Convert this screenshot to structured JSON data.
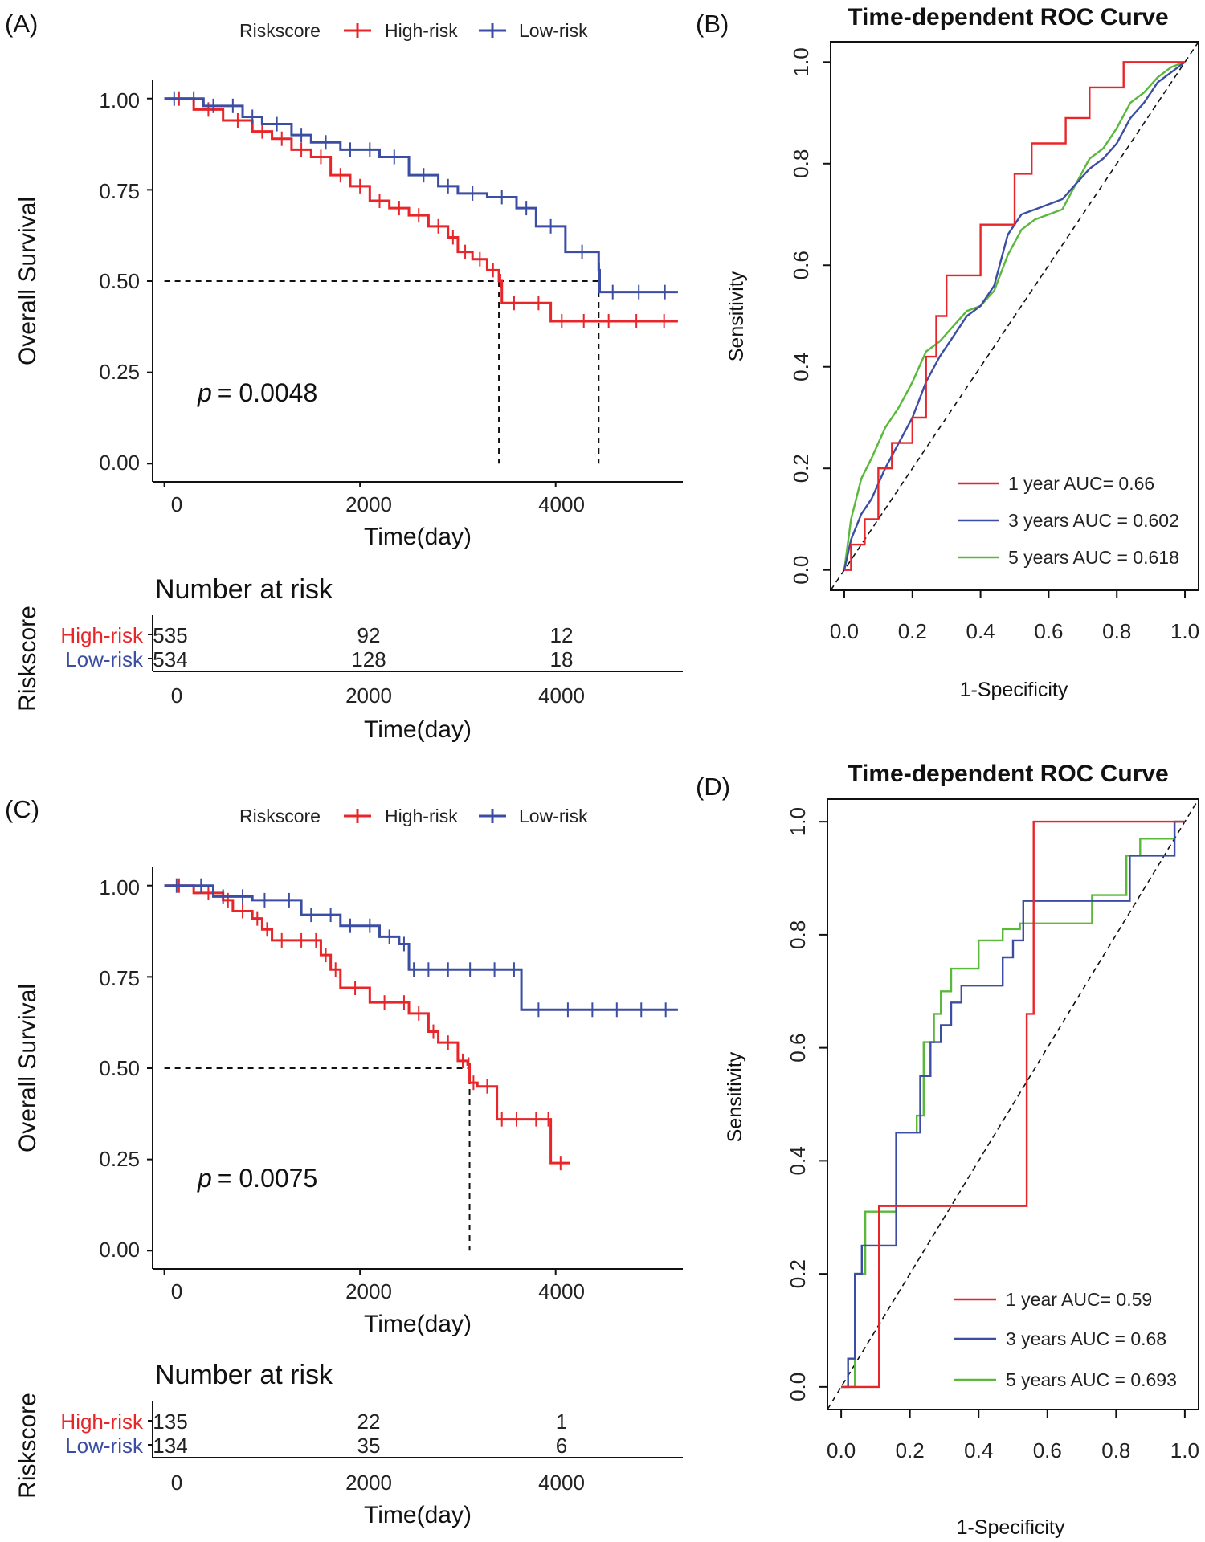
{
  "colors": {
    "high": "#e8262a",
    "low": "#3b4ea3",
    "green": "#5ab83a",
    "black": "#111111"
  },
  "chart_data": [
    {
      "panel": "(A)",
      "type": "line",
      "subtype": "kaplan-meier",
      "legend": {
        "title": "Riskscore",
        "entries": [
          "High-risk",
          "Low-risk"
        ]
      },
      "xlabel": "Time(day)",
      "ylabel": "Overall Survival",
      "xlim": [
        -120,
        5300
      ],
      "ylim": [
        -0.05,
        1.05
      ],
      "xticks": [
        "0",
        "2000",
        "4000"
      ],
      "yticks": [
        "0.00",
        "0.25",
        "0.50",
        "0.75",
        "1.00"
      ],
      "pvalue_label": "p",
      "pvalue": "= 0.0048",
      "median_line": 0.5,
      "medians": [
        3420,
        4440
      ],
      "series": [
        {
          "name": "High-risk",
          "x": [
            0,
            300,
            600,
            900,
            1100,
            1300,
            1500,
            1700,
            1900,
            2100,
            2300,
            2500,
            2700,
            2900,
            3000,
            3150,
            3300,
            3420,
            3450,
            3950,
            4400,
            5250
          ],
          "y": [
            1.0,
            0.97,
            0.94,
            0.91,
            0.89,
            0.86,
            0.84,
            0.79,
            0.76,
            0.72,
            0.7,
            0.68,
            0.65,
            0.62,
            0.58,
            0.56,
            0.53,
            0.5,
            0.44,
            0.39,
            0.39,
            0.39
          ]
        },
        {
          "name": "Low-risk",
          "x": [
            0,
            400,
            800,
            1000,
            1300,
            1500,
            1800,
            2200,
            2500,
            2800,
            3000,
            3300,
            3600,
            3800,
            4100,
            4440,
            4450,
            5250
          ],
          "y": [
            1.0,
            0.98,
            0.95,
            0.93,
            0.9,
            0.88,
            0.86,
            0.84,
            0.79,
            0.76,
            0.74,
            0.73,
            0.7,
            0.65,
            0.58,
            0.53,
            0.47,
            0.47
          ]
        }
      ],
      "risk_table": {
        "title": "Number at risk",
        "ylabel": "Riskscore",
        "xlabel": "Time(day)",
        "rows": [
          {
            "name": "High-risk",
            "values": [
              "535",
              "92",
              "12"
            ]
          },
          {
            "name": "Low-risk",
            "values": [
              "534",
              "128",
              "18"
            ]
          }
        ]
      }
    },
    {
      "panel": "(B)",
      "type": "line",
      "subtype": "roc",
      "title": "Time-dependent ROC Curve",
      "xlabel": "1-Specificity",
      "ylabel": "Sensitivity",
      "xlim": [
        -0.04,
        1.04
      ],
      "ylim": [
        -0.04,
        1.04
      ],
      "xticks": [
        "0.0",
        "0.2",
        "0.4",
        "0.6",
        "0.8",
        "1.0"
      ],
      "yticks": [
        "0.0",
        "0.2",
        "0.4",
        "0.6",
        "0.8",
        "1.0"
      ],
      "series": [
        {
          "name": "1 year AUC= 0.66",
          "x": [
            0,
            0.02,
            0.02,
            0.06,
            0.06,
            0.1,
            0.1,
            0.14,
            0.14,
            0.2,
            0.2,
            0.24,
            0.24,
            0.27,
            0.27,
            0.3,
            0.3,
            0.4,
            0.4,
            0.5,
            0.5,
            0.55,
            0.55,
            0.65,
            0.65,
            0.72,
            0.72,
            0.82,
            0.82,
            1
          ],
          "y": [
            0,
            0,
            0.05,
            0.05,
            0.1,
            0.1,
            0.2,
            0.2,
            0.25,
            0.25,
            0.3,
            0.3,
            0.42,
            0.42,
            0.5,
            0.5,
            0.58,
            0.58,
            0.68,
            0.68,
            0.78,
            0.78,
            0.84,
            0.84,
            0.89,
            0.89,
            0.95,
            0.95,
            1,
            1
          ]
        },
        {
          "name": "3 years AUC = 0.602",
          "x": [
            0,
            0.02,
            0.05,
            0.08,
            0.12,
            0.16,
            0.2,
            0.24,
            0.28,
            0.32,
            0.36,
            0.4,
            0.44,
            0.48,
            0.52,
            0.56,
            0.6,
            0.64,
            0.68,
            0.72,
            0.76,
            0.8,
            0.84,
            0.88,
            0.92,
            0.96,
            1
          ],
          "y": [
            0,
            0.06,
            0.11,
            0.14,
            0.2,
            0.25,
            0.3,
            0.37,
            0.42,
            0.46,
            0.5,
            0.52,
            0.56,
            0.66,
            0.7,
            0.71,
            0.72,
            0.73,
            0.76,
            0.79,
            0.81,
            0.84,
            0.89,
            0.92,
            0.96,
            0.98,
            1
          ]
        },
        {
          "name": "5 years AUC = 0.618",
          "x": [
            0,
            0.02,
            0.05,
            0.08,
            0.12,
            0.16,
            0.2,
            0.24,
            0.28,
            0.32,
            0.36,
            0.4,
            0.44,
            0.48,
            0.52,
            0.56,
            0.6,
            0.64,
            0.68,
            0.72,
            0.76,
            0.8,
            0.84,
            0.88,
            0.92,
            0.96,
            1
          ],
          "y": [
            0,
            0.1,
            0.18,
            0.22,
            0.28,
            0.32,
            0.37,
            0.43,
            0.45,
            0.48,
            0.51,
            0.52,
            0.55,
            0.62,
            0.67,
            0.69,
            0.7,
            0.71,
            0.76,
            0.81,
            0.83,
            0.87,
            0.92,
            0.94,
            0.97,
            0.99,
            1
          ]
        }
      ]
    },
    {
      "panel": "(C)",
      "type": "line",
      "subtype": "kaplan-meier",
      "legend": {
        "title": "Riskscore",
        "entries": [
          "High-risk",
          "Low-risk"
        ]
      },
      "xlabel": "Time(day)",
      "ylabel": "Overall Survival",
      "xlim": [
        -120,
        5300
      ],
      "ylim": [
        -0.05,
        1.05
      ],
      "xticks": [
        "0",
        "2000",
        "4000"
      ],
      "yticks": [
        "0.00",
        "0.25",
        "0.50",
        "0.75",
        "1.00"
      ],
      "pvalue_label": "p",
      "pvalue": "= 0.0075",
      "median_line": 0.5,
      "medians": [
        3120
      ],
      "series": [
        {
          "name": "High-risk",
          "x": [
            0,
            300,
            600,
            700,
            900,
            1000,
            1100,
            1500,
            1600,
            1700,
            1800,
            2100,
            2400,
            2500,
            2700,
            2800,
            3000,
            3100,
            3120,
            3200,
            3400,
            3500,
            3900,
            3950,
            4150
          ],
          "y": [
            1.0,
            0.98,
            0.96,
            0.93,
            0.91,
            0.88,
            0.85,
            0.85,
            0.81,
            0.77,
            0.72,
            0.68,
            0.68,
            0.65,
            0.6,
            0.57,
            0.52,
            0.51,
            0.46,
            0.45,
            0.36,
            0.36,
            0.36,
            0.24,
            0.24
          ]
        },
        {
          "name": "Low-risk",
          "x": [
            0,
            500,
            900,
            1400,
            1800,
            2200,
            2400,
            2500,
            2600,
            3000,
            3500,
            3650,
            4000,
            5250
          ],
          "y": [
            1.0,
            0.97,
            0.96,
            0.92,
            0.89,
            0.86,
            0.84,
            0.77,
            0.77,
            0.77,
            0.77,
            0.66,
            0.66,
            0.66
          ]
        }
      ],
      "risk_table": {
        "title": "Number at risk",
        "ylabel": "Riskscore",
        "xlabel": "Time(day)",
        "rows": [
          {
            "name": "High-risk",
            "values": [
              "135",
              "22",
              "1"
            ]
          },
          {
            "name": "Low-risk",
            "values": [
              "134",
              "35",
              "6"
            ]
          }
        ]
      }
    },
    {
      "panel": "(D)",
      "type": "line",
      "subtype": "roc",
      "title": "Time-dependent ROC Curve",
      "xlabel": "1-Specificity",
      "ylabel": "Sensitivity",
      "xlim": [
        -0.04,
        1.04
      ],
      "ylim": [
        -0.04,
        1.04
      ],
      "xticks": [
        "0.0",
        "0.2",
        "0.4",
        "0.6",
        "0.8",
        "1.0"
      ],
      "yticks": [
        "0.0",
        "0.2",
        "0.4",
        "0.6",
        "0.8",
        "1.0"
      ],
      "series": [
        {
          "name": "1 year AUC= 0.59",
          "x": [
            0,
            0.11,
            0.11,
            0.54,
            0.54,
            0.56,
            0.56,
            1
          ],
          "y": [
            0,
            0,
            0.32,
            0.32,
            0.66,
            0.66,
            1,
            1
          ]
        },
        {
          "name": "3 years AUC = 0.68",
          "x": [
            0,
            0.02,
            0.02,
            0.04,
            0.04,
            0.06,
            0.06,
            0.16,
            0.16,
            0.23,
            0.23,
            0.26,
            0.26,
            0.29,
            0.29,
            0.32,
            0.32,
            0.35,
            0.35,
            0.4,
            0.4,
            0.47,
            0.47,
            0.5,
            0.5,
            0.53,
            0.53,
            0.63,
            0.63,
            0.84,
            0.84,
            0.97,
            0.97,
            1
          ],
          "y": [
            0,
            0,
            0.05,
            0.05,
            0.2,
            0.2,
            0.25,
            0.25,
            0.45,
            0.45,
            0.55,
            0.55,
            0.61,
            0.61,
            0.64,
            0.64,
            0.68,
            0.68,
            0.71,
            0.71,
            0.71,
            0.71,
            0.76,
            0.76,
            0.79,
            0.79,
            0.86,
            0.86,
            0.86,
            0.86,
            0.94,
            0.94,
            1,
            1
          ]
        },
        {
          "name": "5 years AUC = 0.693",
          "x": [
            0,
            0.04,
            0.04,
            0.07,
            0.07,
            0.1,
            0.1,
            0.16,
            0.16,
            0.22,
            0.22,
            0.24,
            0.24,
            0.27,
            0.27,
            0.29,
            0.29,
            0.32,
            0.32,
            0.36,
            0.36,
            0.4,
            0.4,
            0.47,
            0.47,
            0.52,
            0.52,
            0.58,
            0.58,
            0.73,
            0.73,
            0.83,
            0.83,
            0.87,
            0.87,
            0.97,
            0.97,
            1
          ],
          "y": [
            0,
            0,
            0.2,
            0.2,
            0.31,
            0.31,
            0.31,
            0.31,
            0.45,
            0.45,
            0.48,
            0.48,
            0.61,
            0.61,
            0.66,
            0.66,
            0.7,
            0.7,
            0.74,
            0.74,
            0.74,
            0.74,
            0.79,
            0.79,
            0.81,
            0.81,
            0.82,
            0.82,
            0.82,
            0.82,
            0.87,
            0.87,
            0.94,
            0.94,
            0.97,
            0.97,
            1,
            1
          ]
        }
      ]
    }
  ]
}
